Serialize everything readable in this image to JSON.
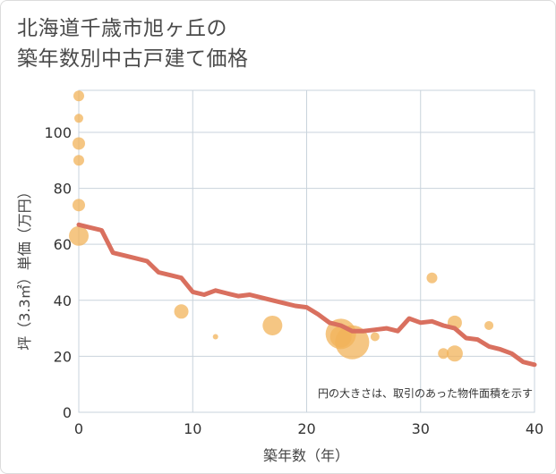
{
  "title": {
    "line1": "北海道千歳市旭ヶ丘の",
    "line2": "築年数別中古戸建て価格"
  },
  "chart_data": {
    "type": "scatter",
    "title": "北海道千歳市旭ヶ丘の築年数別中古戸建て価格",
    "xlabel": "築年数（年）",
    "ylabel": "坪（3.3㎡）単価（万円）",
    "xlim": [
      0,
      40
    ],
    "ylim": [
      0,
      115
    ],
    "xticks": [
      0,
      10,
      20,
      30,
      40
    ],
    "yticks": [
      0,
      20,
      40,
      60,
      80,
      100
    ],
    "grid": true,
    "annotation": "円の大きさは、取引のあった物件面積を示す",
    "colors": {
      "bubble": "#f2b35a",
      "trend": "#d9705f",
      "grid": "#c9d3dc"
    },
    "bubbles": [
      {
        "x": 0,
        "y": 113,
        "size": 6
      },
      {
        "x": 0,
        "y": 105,
        "size": 5
      },
      {
        "x": 0,
        "y": 96,
        "size": 7
      },
      {
        "x": 0,
        "y": 90,
        "size": 6
      },
      {
        "x": 0,
        "y": 74,
        "size": 7
      },
      {
        "x": 0,
        "y": 63,
        "size": 11
      },
      {
        "x": 9,
        "y": 36,
        "size": 8
      },
      {
        "x": 12,
        "y": 27,
        "size": 3
      },
      {
        "x": 17,
        "y": 31,
        "size": 11
      },
      {
        "x": 23,
        "y": 28,
        "size": 17
      },
      {
        "x": 23,
        "y": 27,
        "size": 12
      },
      {
        "x": 24,
        "y": 25,
        "size": 19
      },
      {
        "x": 26,
        "y": 27,
        "size": 5
      },
      {
        "x": 31,
        "y": 48,
        "size": 6
      },
      {
        "x": 32,
        "y": 21,
        "size": 6
      },
      {
        "x": 33,
        "y": 32,
        "size": 8
      },
      {
        "x": 33,
        "y": 21,
        "size": 9
      },
      {
        "x": 36,
        "y": 31,
        "size": 5
      }
    ],
    "trend": {
      "x": [
        0,
        1,
        2,
        3,
        4,
        5,
        6,
        7,
        8,
        9,
        10,
        11,
        12,
        13,
        14,
        15,
        16,
        17,
        18,
        19,
        20,
        21,
        22,
        23,
        24,
        25,
        26,
        27,
        28,
        29,
        30,
        31,
        32,
        33,
        34,
        35,
        36,
        37,
        38,
        39,
        40
      ],
      "y": [
        67,
        66,
        65,
        57,
        56,
        55,
        54,
        50,
        49,
        48,
        43,
        42,
        43.5,
        42.5,
        41.5,
        42,
        41,
        40,
        39,
        38,
        37.5,
        35,
        32,
        31,
        29,
        29,
        29.5,
        30,
        29,
        33.5,
        32,
        32.5,
        31,
        30,
        26.5,
        26,
        23.5,
        22.5,
        21,
        18,
        17
      ]
    }
  }
}
